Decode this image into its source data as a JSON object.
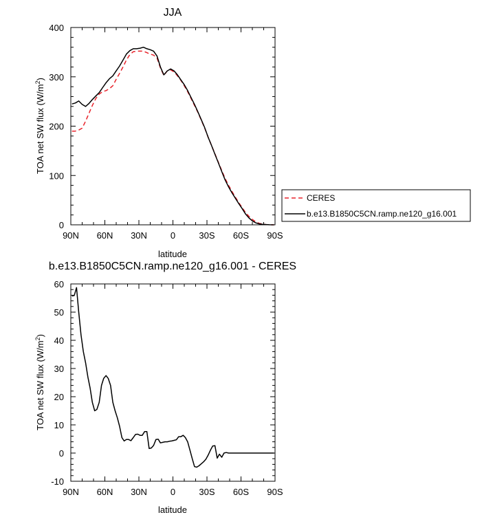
{
  "chart_data": [
    {
      "type": "line",
      "title": "JJA",
      "xlabel": "latitude",
      "ylabel": "TOA net SW flux (W/m",
      "ylabel_sup": "2",
      "ylabel_close": ")",
      "xlim": [
        -90,
        90
      ],
      "ylim": [
        0,
        400
      ],
      "xticks": [
        -90,
        -60,
        -30,
        0,
        30,
        60,
        90
      ],
      "xtick_labels": [
        "90N",
        "60N",
        "30N",
        "0",
        "30S",
        "60S",
        "90S"
      ],
      "yticks": [
        0,
        100,
        200,
        300,
        400
      ],
      "ytick_labels": [
        "0",
        "100",
        "200",
        "300",
        "400"
      ],
      "grid": false,
      "legend": "right",
      "series": [
        {
          "name": "CERES",
          "color": "#e8222a",
          "dash": "dashed",
          "x": [
            -89,
            -86,
            -83,
            -80,
            -77,
            -74,
            -71,
            -68,
            -65,
            -62,
            -59,
            -56,
            -53,
            -50,
            -47,
            -44,
            -41,
            -38,
            -35,
            -32,
            -29,
            -26,
            -23,
            -20,
            -17,
            -14,
            -11,
            -8,
            -5,
            -2,
            1,
            4,
            7,
            10,
            13,
            16,
            19,
            22,
            25,
            28,
            31,
            34,
            37,
            40,
            43,
            46,
            49,
            52,
            55,
            58,
            61,
            64,
            67,
            70,
            73,
            76,
            79,
            82,
            85,
            89
          ],
          "y": [
            190,
            190,
            192,
            196,
            210,
            226,
            242,
            256,
            265,
            270,
            272,
            276,
            282,
            295,
            307,
            320,
            334,
            345,
            351,
            352,
            352,
            352,
            349,
            346,
            344,
            338,
            318,
            303,
            312,
            314,
            310,
            302,
            293,
            282,
            270,
            256,
            242,
            228,
            212,
            196,
            178,
            161,
            144,
            127,
            110,
            94,
            80,
            68,
            56,
            45,
            35,
            25,
            17,
            11,
            6,
            3,
            1.5,
            0.5,
            0.2,
            0
          ]
        },
        {
          "name": "b.e13.B1850C5CN.ramp.ne120_g16.001",
          "color": "#000000",
          "dash": "solid",
          "x": [
            -89,
            -86,
            -83,
            -80,
            -77,
            -74,
            -71,
            -68,
            -65,
            -62,
            -59,
            -56,
            -53,
            -50,
            -47,
            -44,
            -41,
            -38,
            -35,
            -32,
            -29,
            -26,
            -23,
            -20,
            -17,
            -14,
            -11,
            -8,
            -5,
            -2,
            1,
            4,
            7,
            10,
            13,
            16,
            19,
            22,
            25,
            28,
            31,
            34,
            37,
            40,
            43,
            46,
            49,
            52,
            55,
            58,
            61,
            64,
            67,
            70,
            73,
            76,
            79,
            82,
            85,
            89
          ],
          "y": [
            245,
            247,
            251,
            244,
            240,
            246,
            254,
            261,
            268,
            278,
            288,
            296,
            302,
            312,
            322,
            334,
            346,
            353,
            357,
            357,
            358,
            360,
            357,
            355,
            352,
            342,
            320,
            304,
            312,
            316,
            312,
            304,
            294,
            284,
            272,
            258,
            244,
            229,
            213,
            197,
            178,
            161,
            143,
            126,
            108,
            91,
            77,
            65,
            54,
            43,
            33,
            22,
            14,
            8,
            4,
            2,
            1,
            0.5,
            0.2,
            0
          ]
        }
      ]
    },
    {
      "type": "line",
      "title": "b.e13.B1850C5CN.ramp.ne120_g16.001 - CERES",
      "xlabel": "latitude",
      "ylabel": "TOA net SW flux (W/m",
      "ylabel_sup": "2",
      "ylabel_close": ")",
      "xlim": [
        -90,
        90
      ],
      "ylim": [
        -10,
        60
      ],
      "xticks": [
        -90,
        -60,
        -30,
        0,
        30,
        60,
        90
      ],
      "xtick_labels": [
        "90N",
        "60N",
        "30N",
        "0",
        "30S",
        "60S",
        "90S"
      ],
      "yticks": [
        -10,
        0,
        10,
        20,
        30,
        40,
        50,
        60
      ],
      "ytick_labels": [
        "-10",
        "0",
        "10",
        "20",
        "30",
        "40",
        "50",
        "60"
      ],
      "grid": false,
      "series": [
        {
          "color": "#000000",
          "dash": "solid",
          "x": [
            -89,
            -87,
            -85,
            -83,
            -81,
            -79,
            -77,
            -75,
            -73,
            -71,
            -69,
            -67,
            -65,
            -63,
            -61,
            -59,
            -57,
            -55,
            -53,
            -51,
            -49,
            -47,
            -45,
            -43,
            -41,
            -39,
            -37,
            -35,
            -33,
            -31,
            -29,
            -27,
            -25,
            -23,
            -21,
            -19,
            -17,
            -15,
            -13,
            -11,
            -9,
            -7,
            -5,
            -3,
            -1,
            1,
            3,
            5,
            7,
            9,
            11,
            13,
            15,
            17,
            19,
            21,
            23,
            25,
            27,
            29,
            31,
            33,
            35,
            37,
            39,
            41,
            43,
            45,
            47,
            49,
            51,
            53,
            55,
            57,
            59,
            61,
            63,
            65,
            67,
            69,
            71,
            73,
            75,
            77,
            79,
            81,
            83,
            85,
            87,
            89
          ],
          "y": [
            55.7,
            55.9,
            58.7,
            50,
            42,
            36,
            32,
            27,
            23,
            18,
            15,
            15.5,
            18,
            24,
            26.5,
            27.5,
            26.5,
            24,
            18,
            15,
            12.5,
            9.5,
            5.5,
            4.3,
            4.8,
            4.8,
            4.4,
            5.5,
            6.6,
            6.7,
            6.3,
            6.3,
            7.6,
            7.6,
            1.6,
            1.8,
            2.7,
            4.8,
            4.9,
            3.6,
            3.8,
            4.0,
            4.0,
            4.2,
            4.3,
            4.5,
            4.7,
            5.8,
            5.8,
            6.3,
            5.5,
            4.0,
            1.0,
            -2.0,
            -4.8,
            -5.0,
            -4.5,
            -3.8,
            -3.1,
            -2.2,
            -0.8,
            1.0,
            2.5,
            2.6,
            -1.8,
            -0.4,
            -1.5,
            0.0,
            0.2,
            0.0,
            0.0,
            0.0,
            0.0,
            0.0,
            0.0,
            0.0,
            0.0,
            0.0,
            0.0,
            0.0,
            0.0,
            0.0,
            0.0,
            0.0,
            0.0,
            0.0,
            0.0,
            0.0,
            0.0,
            0.0
          ]
        }
      ]
    }
  ]
}
